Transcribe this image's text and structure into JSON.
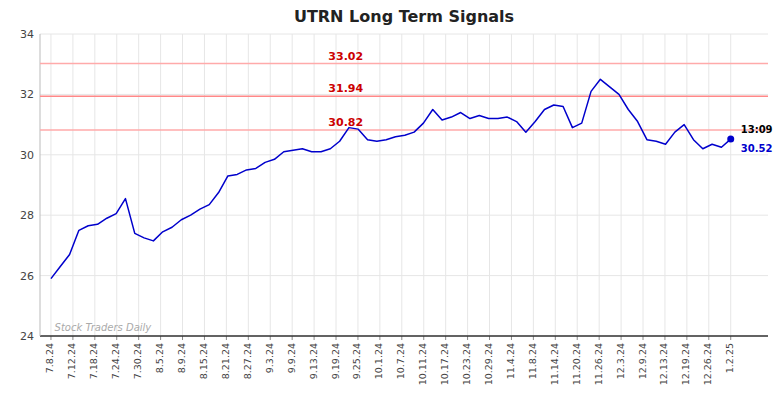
{
  "chart_data": {
    "type": "line",
    "title": "UTRN Long Term Signals",
    "color": "#0000cc",
    "values": [
      25.9,
      26.3,
      26.7,
      27.5,
      27.65,
      27.7,
      27.9,
      28.05,
      28.55,
      27.4,
      27.25,
      27.15,
      27.45,
      27.6,
      27.85,
      28.0,
      28.2,
      28.35,
      28.75,
      29.3,
      29.35,
      29.5,
      29.55,
      29.75,
      29.85,
      30.1,
      30.15,
      30.2,
      30.1,
      30.1,
      30.2,
      30.45,
      30.9,
      30.85,
      30.5,
      30.45,
      30.5,
      30.6,
      30.65,
      30.75,
      31.05,
      31.5,
      31.15,
      31.25,
      31.4,
      31.2,
      31.3,
      31.2,
      31.2,
      31.25,
      31.1,
      30.75,
      31.1,
      31.5,
      31.65,
      31.6,
      30.9,
      31.05,
      32.1,
      32.5,
      32.25,
      32.0,
      31.5,
      31.1,
      30.5,
      30.45,
      30.35,
      30.75,
      31.0,
      30.5,
      30.2,
      30.35,
      30.25,
      30.52
    ],
    "xlim": [
      -0.5,
      32.7
    ],
    "xticks": [
      {
        "value": 0,
        "label": "7.8.24"
      },
      {
        "value": 1,
        "label": "7.12.24"
      },
      {
        "value": 2,
        "label": "7.18.24"
      },
      {
        "value": 3,
        "label": "7.24.24"
      },
      {
        "value": 4,
        "label": "7.30.24"
      },
      {
        "value": 5,
        "label": "8.5.24"
      },
      {
        "value": 6,
        "label": "8.9.24"
      },
      {
        "value": 7,
        "label": "8.15.24"
      },
      {
        "value": 8,
        "label": "8.21.24"
      },
      {
        "value": 9,
        "label": "8.27.24"
      },
      {
        "value": 10,
        "label": "9.3.24"
      },
      {
        "value": 11,
        "label": "9.9.24"
      },
      {
        "value": 12,
        "label": "9.13.24"
      },
      {
        "value": 13,
        "label": "9.19.24"
      },
      {
        "value": 14,
        "label": "9.25.24"
      },
      {
        "value": 15,
        "label": "10.1.24"
      },
      {
        "value": 16,
        "label": "10.7.24"
      },
      {
        "value": 17,
        "label": "10.11.24"
      },
      {
        "value": 18,
        "label": "10.17.24"
      },
      {
        "value": 19,
        "label": "10.23.24"
      },
      {
        "value": 20,
        "label": "10.29.24"
      },
      {
        "value": 21,
        "label": "11.4.24"
      },
      {
        "value": 22,
        "label": "11.8.24"
      },
      {
        "value": 23,
        "label": "11.14.24"
      },
      {
        "value": 24,
        "label": "11.20.24"
      },
      {
        "value": 25,
        "label": "11.26.24"
      },
      {
        "value": 26,
        "label": "12.3.24"
      },
      {
        "value": 27,
        "label": "12.9.24"
      },
      {
        "value": 28,
        "label": "12.13.24"
      },
      {
        "value": 29,
        "label": "12.19.24"
      },
      {
        "value": 30,
        "label": "12.26.24"
      },
      {
        "value": 31,
        "label": "1.2.25"
      }
    ],
    "ylim": [
      24,
      34
    ],
    "yticks": [
      24,
      26,
      28,
      30,
      32,
      34
    ],
    "grid": true,
    "reference_lines": [
      {
        "value": 33.02,
        "label": "33.02",
        "color": "#ffaaaa",
        "label_color": "#cc0000"
      },
      {
        "value": 31.94,
        "label": "31.94",
        "color": "#ff8888",
        "label_color": "#cc0000"
      },
      {
        "value": 30.82,
        "label": "30.82",
        "color": "#ffaaaa",
        "label_color": "#cc0000"
      }
    ],
    "annotations": [
      {
        "text": "13:09",
        "color": "#000000"
      },
      {
        "text": "30.52",
        "color": "#0000cc"
      },
      {
        "text": "Stock Traders Daily",
        "color": "#aaaaaa"
      }
    ]
  }
}
